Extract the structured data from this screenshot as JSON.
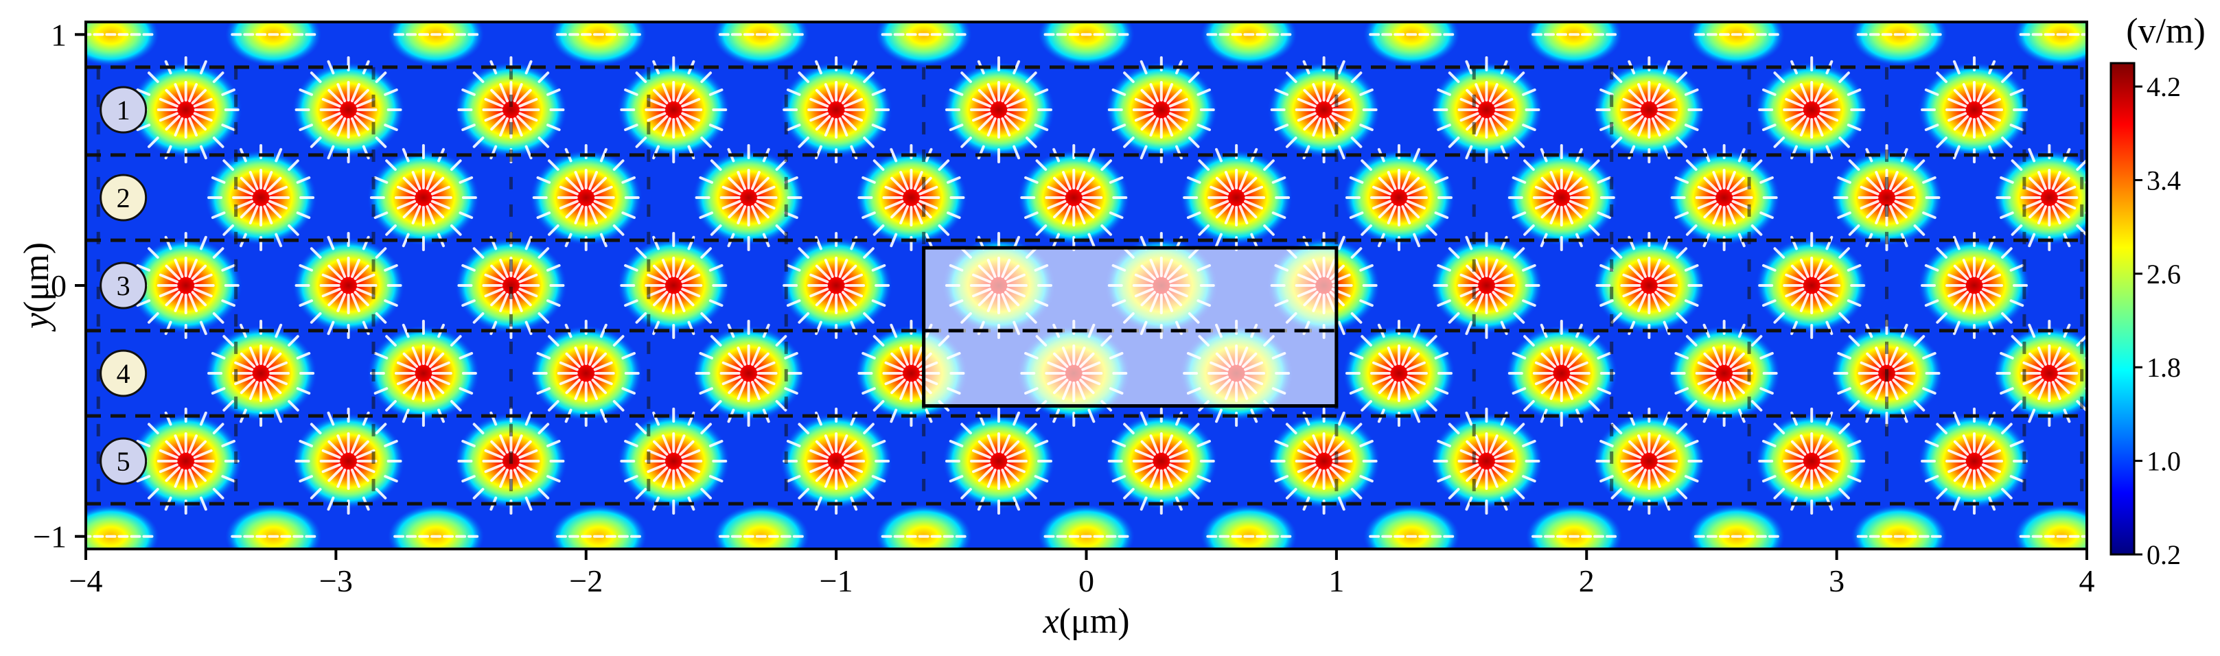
{
  "chart_data": {
    "type": "heatmap",
    "title": "",
    "x_range": [
      -4,
      4
    ],
    "y_range": [
      -1.05,
      1.05
    ],
    "x_ticks": [
      "−4",
      "−3",
      "−2",
      "−1",
      "0",
      "1",
      "2",
      "3",
      "4"
    ],
    "x_tick_values": [
      -4,
      -3,
      -2,
      -1,
      0,
      1,
      2,
      3,
      4
    ],
    "y_ticks": [
      "1",
      "0",
      "−1"
    ],
    "y_tick_values": [
      1,
      0,
      -1
    ],
    "xlabel_var": "x",
    "xlabel_unit": "(μm)",
    "ylabel_var": "y",
    "ylabel_unit": "(μm)",
    "colorbar": {
      "title": "(v/m)",
      "range": [
        0.2,
        4.4
      ],
      "ticks": [
        "4.2",
        "3.4",
        "2.6",
        "1.8",
        "1.0",
        "0.2"
      ],
      "tick_values": [
        4.2,
        3.4,
        2.6,
        1.8,
        1.0,
        0.2
      ],
      "colors": [
        "#00007f",
        "#0000ff",
        "#007fff",
        "#00ffff",
        "#7fff7f",
        "#ffff00",
        "#ff7f00",
        "#ff0000",
        "#7f0000"
      ]
    },
    "grid": false,
    "rows": [
      {
        "label": "1",
        "y": 0.7,
        "fill": "#cfd3ef"
      },
      {
        "label": "2",
        "y": 0.35,
        "fill": "#f6f1d3"
      },
      {
        "label": "3",
        "y": 0.0,
        "fill": "#cfd3ef"
      },
      {
        "label": "4",
        "y": -0.35,
        "fill": "#f6f1d3"
      },
      {
        "label": "5",
        "y": -0.7,
        "fill": "#cfd3ef"
      }
    ],
    "field_hotspots": [
      {
        "y": 1.0,
        "x": [
          -3.9,
          -3.25,
          -2.6,
          -1.95,
          -1.3,
          -0.65,
          0.0,
          0.65,
          1.3,
          1.95,
          2.6,
          3.25,
          3.9
        ],
        "peak": 3.6
      },
      {
        "y": 0.7,
        "x": [
          -3.6,
          -2.95,
          -2.3,
          -1.65,
          -1.0,
          -0.35,
          0.3,
          0.95,
          1.6,
          2.25,
          2.9,
          3.55
        ],
        "peak": 4.0
      },
      {
        "y": 0.35,
        "x": [
          -3.3,
          -2.65,
          -2.0,
          -1.35,
          -0.7,
          -0.05,
          0.6,
          1.25,
          1.9,
          2.55,
          3.2,
          3.85
        ],
        "peak": 4.3
      },
      {
        "y": 0.0,
        "x": [
          -3.6,
          -2.95,
          -2.3,
          -1.65,
          -1.0,
          -0.35,
          0.3,
          0.95,
          1.6,
          2.25,
          2.9,
          3.55
        ],
        "peak": 4.0
      },
      {
        "y": -0.35,
        "x": [
          -3.3,
          -2.65,
          -2.0,
          -1.35,
          -0.7,
          -0.05,
          0.6,
          1.25,
          1.9,
          2.55,
          3.2,
          3.85
        ],
        "peak": 4.3
      },
      {
        "y": -0.7,
        "x": [
          -3.6,
          -2.95,
          -2.3,
          -1.65,
          -1.0,
          -0.35,
          0.3,
          0.95,
          1.6,
          2.25,
          2.9,
          3.55
        ],
        "peak": 4.0
      },
      {
        "y": -1.0,
        "x": [
          -3.9,
          -3.25,
          -2.6,
          -1.95,
          -1.3,
          -0.65,
          0.0,
          0.65,
          1.3,
          1.95,
          2.6,
          3.25,
          3.9
        ],
        "peak": 3.6
      }
    ],
    "dashed_row_bounds_y": [
      0.87,
      0.52,
      0.18,
      -0.18,
      -0.52,
      -0.87
    ],
    "highlight_region": {
      "x": [
        -0.65,
        1.0
      ],
      "y": [
        -0.48,
        0.15
      ],
      "divider_y": -0.18
    }
  }
}
